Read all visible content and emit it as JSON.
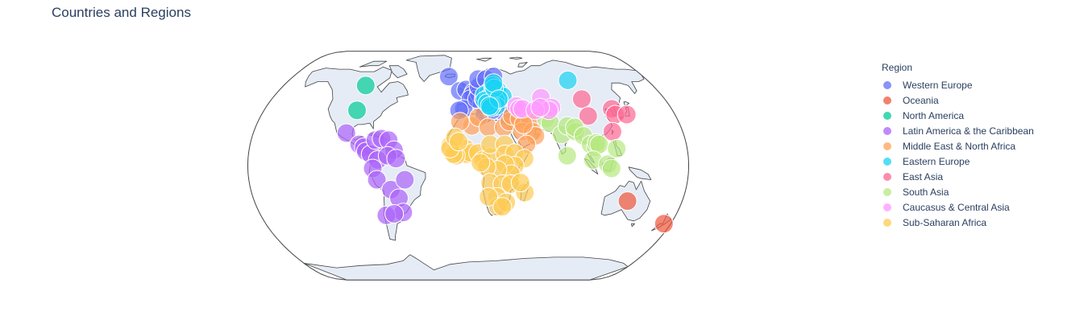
{
  "title": "Countries and Regions",
  "chart_data": {
    "type": "scatter_geo",
    "projection": "natural earth",
    "title": "Countries and Regions",
    "legend_title": "Region",
    "legend_position": "top-right",
    "series": [
      {
        "name": "Western Europe",
        "color": "#636efa",
        "points": [
          [
            -20,
            64
          ],
          [
            -8,
            53
          ],
          [
            -2,
            54
          ],
          [
            5,
            52
          ],
          [
            4,
            50
          ],
          [
            2,
            47
          ],
          [
            -4,
            40
          ],
          [
            -8,
            39
          ],
          [
            12,
            43
          ],
          [
            10,
            51
          ],
          [
            8,
            47
          ],
          [
            14,
            47
          ],
          [
            10,
            56
          ],
          [
            10,
            62
          ],
          [
            18,
            62
          ],
          [
            26,
            64
          ],
          [
            14,
            36
          ],
          [
            33,
            35
          ],
          [
            21,
            39
          ]
        ]
      },
      {
        "name": "Oceania",
        "color": "#EF553B",
        "points": [
          [
            134,
            -25
          ],
          [
            174,
            -41
          ]
        ]
      },
      {
        "name": "North America",
        "color": "#00cc96",
        "points": [
          [
            -100,
            57
          ],
          [
            -98,
            39
          ]
        ]
      },
      {
        "name": "Latin America & the Caribbean",
        "color": "#ab63fa",
        "points": [
          [
            -102,
            23
          ],
          [
            -90,
            15
          ],
          [
            -86,
            13
          ],
          [
            -84,
            10
          ],
          [
            -80,
            8
          ],
          [
            -77,
            18
          ],
          [
            -72,
            19
          ],
          [
            -66,
            18
          ],
          [
            -61,
            11
          ],
          [
            -74,
            4
          ],
          [
            -66,
            7
          ],
          [
            -59,
            5
          ],
          [
            -78,
            -2
          ],
          [
            -75,
            -10
          ],
          [
            -64,
            -17
          ],
          [
            -52,
            -10
          ],
          [
            -58,
            -23
          ],
          [
            -56,
            -33
          ],
          [
            -71,
            -35
          ],
          [
            -64,
            -34
          ]
        ]
      },
      {
        "name": "Middle East & North Africa",
        "color": "#FFA15A",
        "points": [
          [
            3,
            28
          ],
          [
            9,
            34
          ],
          [
            17,
            27
          ],
          [
            30,
            27
          ],
          [
            35,
            31
          ],
          [
            38,
            35
          ],
          [
            44,
            33
          ],
          [
            53,
            32
          ],
          [
            45,
            24
          ],
          [
            54,
            24
          ],
          [
            56,
            21
          ],
          [
            48,
            15
          ],
          [
            47,
            29
          ],
          [
            -7,
            31
          ]
        ]
      },
      {
        "name": "Eastern Europe",
        "color": "#19d3f3",
        "points": [
          [
            100,
            61
          ],
          [
            28,
            53
          ],
          [
            32,
            49
          ],
          [
            19,
            52
          ],
          [
            15,
            50
          ],
          [
            19,
            48
          ],
          [
            20,
            47
          ],
          [
            25,
            46
          ],
          [
            25,
            42
          ],
          [
            20,
            44
          ],
          [
            21,
            42
          ],
          [
            15,
            46
          ],
          [
            17,
            44
          ],
          [
            20,
            41
          ],
          [
            24,
            57
          ],
          [
            25,
            55
          ],
          [
            25,
            59
          ],
          [
            28,
            47
          ],
          [
            19,
            42
          ]
        ]
      },
      {
        "name": "East Asia",
        "color": "#FF6692",
        "points": [
          [
            104,
            47
          ],
          [
            104,
            35
          ],
          [
            127,
            40
          ],
          [
            128,
            36
          ],
          [
            138,
            36
          ],
          [
            121,
            24
          ]
        ]
      },
      {
        "name": "South Asia",
        "color": "#B6E880",
        "points": [
          [
            67,
            33
          ],
          [
            70,
            30
          ],
          [
            78,
            22
          ],
          [
            84,
            28
          ],
          [
            90,
            24
          ],
          [
            90,
            27
          ],
          [
            81,
            7
          ],
          [
            96,
            21
          ],
          [
            101,
            15
          ],
          [
            105,
            13
          ],
          [
            106,
            16
          ],
          [
            108,
            15
          ],
          [
            102,
            4
          ],
          [
            114,
            1
          ],
          [
            122,
            12
          ],
          [
            117,
            -2
          ]
        ]
      },
      {
        "name": "Caucasus & Central Asia",
        "color": "#FF97FF",
        "points": [
          [
            43,
            42
          ],
          [
            45,
            40
          ],
          [
            48,
            40
          ],
          [
            67,
            48
          ],
          [
            74,
            41
          ],
          [
            71,
            39
          ],
          [
            59,
            39
          ],
          [
            64,
            41
          ]
        ]
      },
      {
        "name": "Sub-Saharan Africa",
        "color": "#FECB52",
        "points": [
          [
            -15,
            14
          ],
          [
            -11,
            11
          ],
          [
            -5,
            8
          ],
          [
            -2,
            12
          ],
          [
            -1,
            8
          ],
          [
            2,
            9
          ],
          [
            8,
            9
          ],
          [
            12,
            4
          ],
          [
            18,
            6
          ],
          [
            18,
            15
          ],
          [
            30,
            15
          ],
          [
            30,
            8
          ],
          [
            38,
            9
          ],
          [
            46,
            5
          ],
          [
            38,
            0
          ],
          [
            30,
            1
          ],
          [
            35,
            -6
          ],
          [
            24,
            -3
          ],
          [
            15,
            -1
          ],
          [
            18,
            -12
          ],
          [
            28,
            -13
          ],
          [
            35,
            -13
          ],
          [
            24,
            -22
          ],
          [
            25,
            -29
          ],
          [
            17,
            -22
          ],
          [
            47,
            -19
          ],
          [
            32,
            -26
          ],
          [
            29,
            -29
          ],
          [
            -10,
            7
          ],
          [
            -12,
            8
          ],
          [
            -15,
            12
          ],
          [
            -11,
            20
          ],
          [
            -8,
            17
          ],
          [
            43,
            -12
          ],
          [
            10,
            2
          ]
        ]
      }
    ]
  }
}
